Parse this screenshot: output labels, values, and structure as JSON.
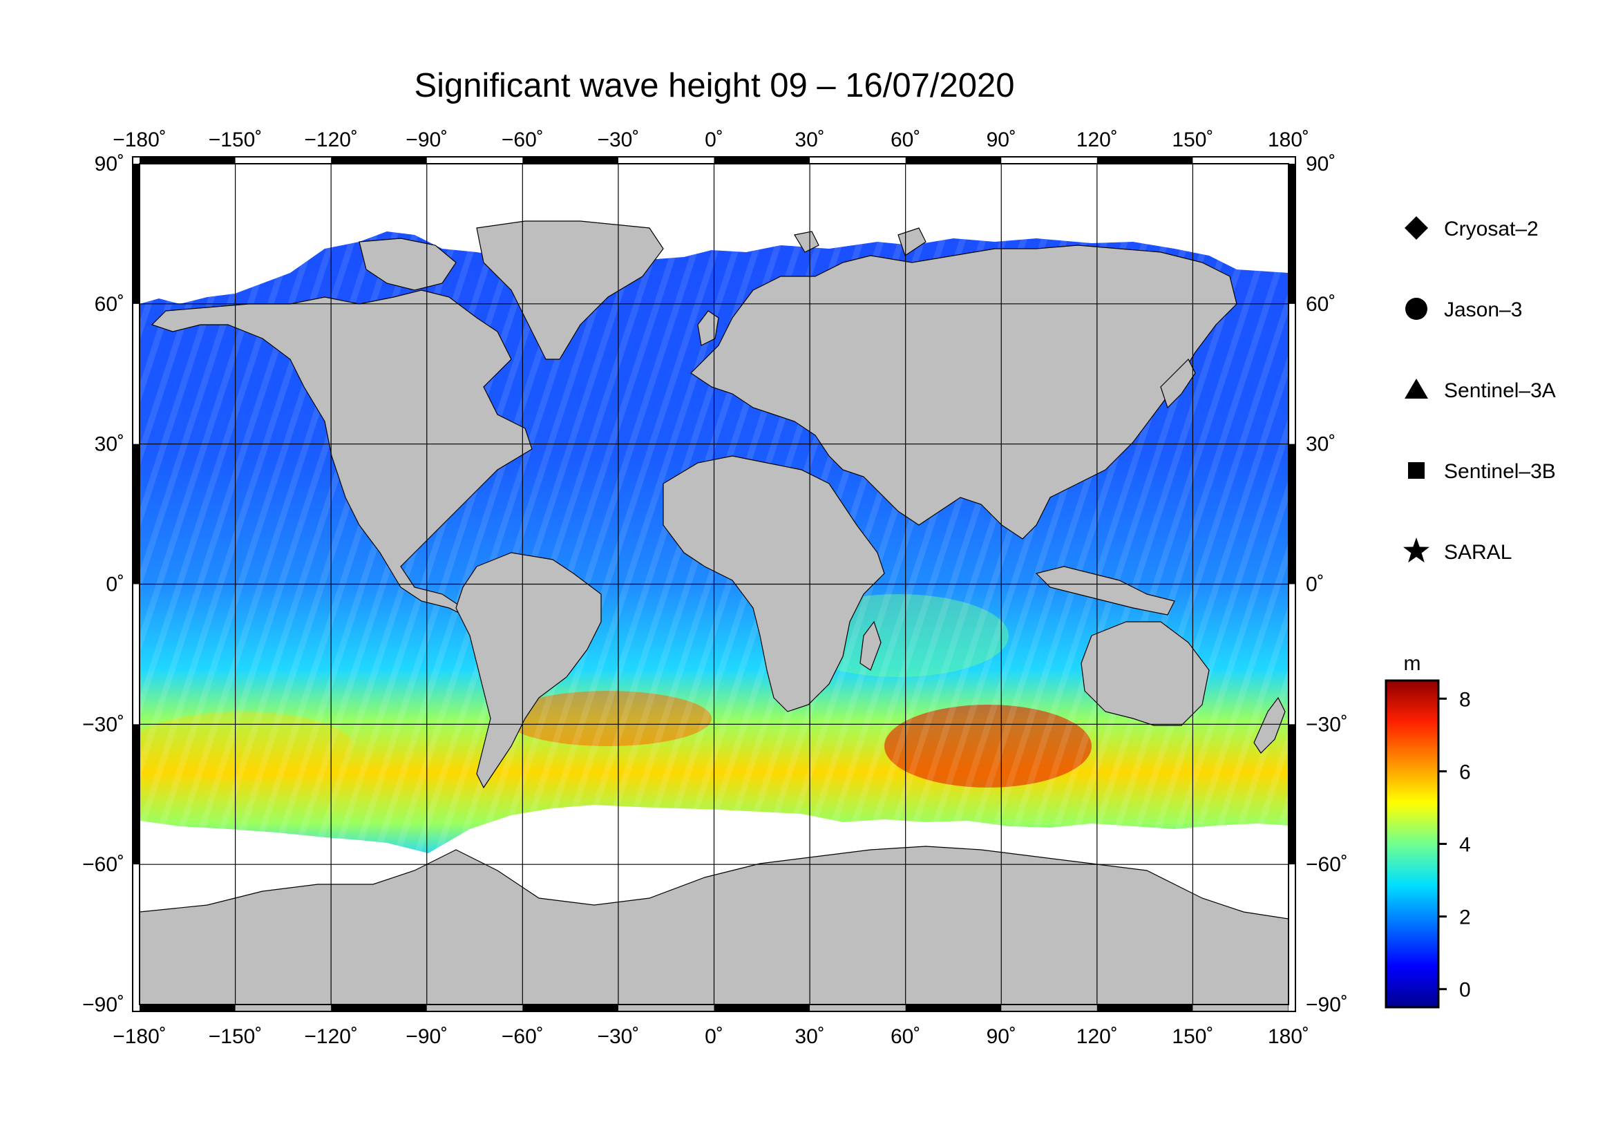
{
  "title": "Significant wave height 09 – 16/07/2020",
  "lon_ticks": [
    "−180˚",
    "−150˚",
    "−120˚",
    "−90˚",
    "−60˚",
    "−30˚",
    "0˚",
    "30˚",
    "60˚",
    "90˚",
    "120˚",
    "150˚",
    "180˚"
  ],
  "lat_ticks_left": [
    "90˚",
    "60˚",
    "30˚",
    "0˚",
    "−30˚",
    "−60˚",
    "−90˚"
  ],
  "lat_ticks_right": [
    "90˚",
    "60˚",
    "30˚",
    "0˚",
    "−30˚",
    "−60˚",
    "−90˚"
  ],
  "legend": [
    {
      "label": "Cryosat–2",
      "marker": "diamond"
    },
    {
      "label": "Jason–3",
      "marker": "circle"
    },
    {
      "label": "Sentinel–3A",
      "marker": "triangle"
    },
    {
      "label": "Sentinel–3B",
      "marker": "square"
    },
    {
      "label": "SARAL",
      "marker": "star"
    }
  ],
  "colorbar": {
    "unit": "m",
    "min": -0.5,
    "max": 8.5,
    "ticks": [
      "0",
      "2",
      "4",
      "6",
      "8"
    ],
    "colors": [
      "#00008f",
      "#0000ff",
      "#0070ff",
      "#00dfff",
      "#70ff8f",
      "#ffff00",
      "#ff8f00",
      "#ff1f00",
      "#8f0000"
    ]
  },
  "map": {
    "lon_range": [
      -180,
      180
    ],
    "lat_range": [
      -90,
      90
    ],
    "land_color": "#bebebe",
    "ice_color": "#ffffff"
  }
}
